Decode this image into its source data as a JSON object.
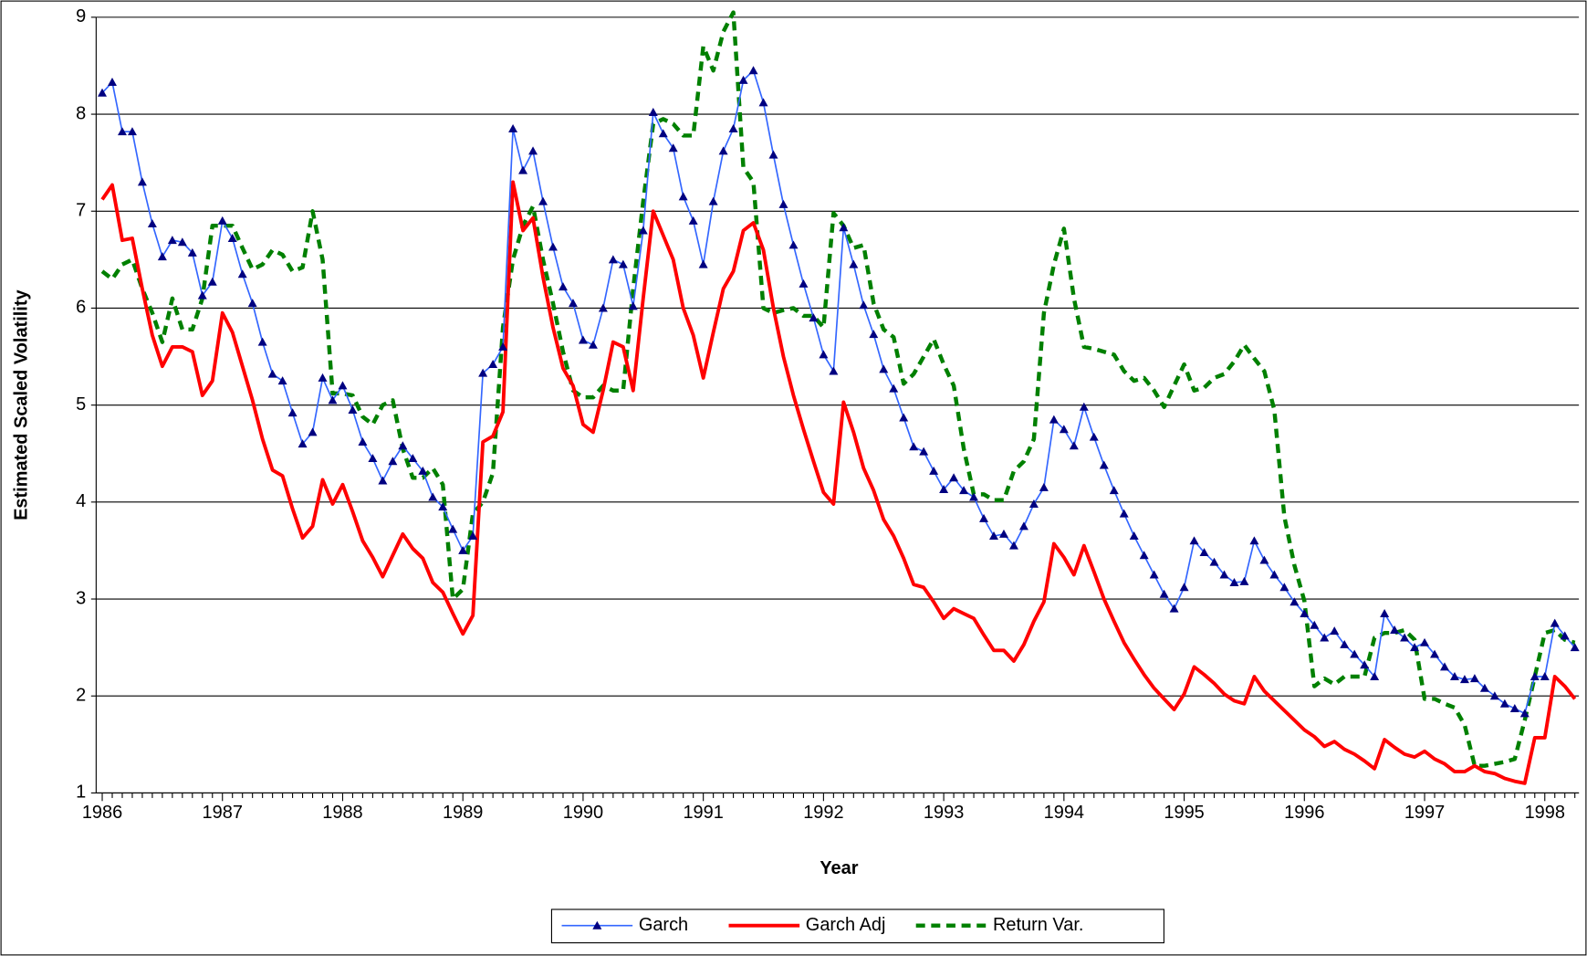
{
  "chart_data": {
    "type": "line",
    "x_label": "Year",
    "y_label": "Estimated Scaled Volatility",
    "categories": [
      "1986",
      null,
      null,
      null,
      null,
      null,
      null,
      null,
      null,
      null,
      null,
      null,
      "1987",
      null,
      null,
      null,
      null,
      null,
      null,
      null,
      null,
      null,
      null,
      null,
      "1988",
      null,
      null,
      null,
      null,
      null,
      null,
      null,
      null,
      null,
      null,
      null,
      "1989",
      null,
      null,
      null,
      null,
      null,
      null,
      null,
      null,
      null,
      null,
      null,
      "1990",
      null,
      null,
      null,
      null,
      null,
      null,
      null,
      null,
      null,
      null,
      null,
      "1991",
      null,
      null,
      null,
      null,
      null,
      null,
      null,
      null,
      null,
      null,
      null,
      "1992",
      null,
      null,
      null,
      null,
      null,
      null,
      null,
      null,
      null,
      null,
      null,
      "1993",
      null,
      null,
      null,
      null,
      null,
      null,
      null,
      null,
      null,
      null,
      null,
      "1994",
      null,
      null,
      null,
      null,
      null,
      null,
      null,
      null,
      null,
      null,
      null,
      "1995",
      null,
      null,
      null,
      null,
      null,
      null,
      null,
      null,
      null,
      null,
      null,
      "1996",
      null,
      null,
      null,
      null,
      null,
      null,
      null,
      null,
      null,
      null,
      null,
      "1997",
      null,
      null,
      null,
      null,
      null,
      null,
      null,
      null,
      null,
      null,
      null,
      "1998",
      null,
      null,
      null
    ],
    "ylim": [
      1,
      9
    ],
    "yticks": [
      1,
      2,
      3,
      4,
      5,
      6,
      7,
      8,
      9
    ],
    "grid": true,
    "legend": "bottom",
    "series": [
      {
        "name": "Garch",
        "color": "#3366ff",
        "marker": "triangle",
        "marker_color": "#000080",
        "dash": "solid",
        "width": 1.5,
        "values": [
          8.22,
          8.33,
          7.82,
          7.82,
          7.3,
          6.87,
          6.53,
          6.7,
          6.68,
          6.57,
          6.13,
          6.27,
          6.9,
          6.72,
          6.35,
          6.05,
          5.65,
          5.32,
          5.25,
          4.92,
          4.6,
          4.72,
          5.28,
          5.05,
          5.2,
          4.95,
          4.62,
          4.45,
          4.22,
          4.42,
          4.58,
          4.45,
          4.32,
          4.05,
          3.95,
          3.72,
          3.5,
          3.65,
          5.33,
          5.42,
          5.6,
          7.85,
          7.42,
          7.62,
          7.1,
          6.63,
          6.22,
          6.05,
          5.67,
          5.62,
          6.0,
          6.5,
          6.45,
          6.02,
          6.8,
          8.02,
          7.8,
          7.65,
          7.15,
          6.9,
          6.45,
          7.1,
          7.62,
          7.85,
          8.35,
          8.45,
          8.12,
          7.58,
          7.07,
          6.65,
          6.25,
          5.9,
          5.52,
          5.35,
          6.83,
          6.45,
          6.03,
          5.73,
          5.37,
          5.17,
          4.87,
          4.57,
          4.52,
          4.32,
          4.13,
          4.25,
          4.12,
          4.05,
          3.83,
          3.65,
          3.67,
          3.55,
          3.75,
          3.98,
          4.15,
          4.85,
          4.75,
          4.58,
          4.98,
          4.67,
          4.38,
          4.12,
          3.88,
          3.65,
          3.45,
          3.25,
          3.05,
          2.9,
          3.12,
          3.6,
          3.48,
          3.38,
          3.25,
          3.17,
          3.18,
          3.6,
          3.4,
          3.25,
          3.12,
          2.97,
          2.85,
          2.73,
          2.6,
          2.67,
          2.53,
          2.43,
          2.32,
          2.2,
          2.85,
          2.68,
          2.6,
          2.5,
          2.55,
          2.43,
          2.3,
          2.2,
          2.17,
          2.18,
          2.08,
          2.0,
          1.92,
          1.87,
          1.82,
          2.2,
          2.2,
          2.75,
          2.62,
          2.5
        ]
      },
      {
        "name": "Garch Adj",
        "color": "#ff0000",
        "dash": "solid",
        "width": 3.5,
        "values": [
          7.12,
          7.27,
          6.7,
          6.72,
          6.2,
          5.72,
          5.4,
          5.6,
          5.6,
          5.55,
          5.1,
          5.25,
          5.95,
          5.75,
          5.4,
          5.05,
          4.65,
          4.33,
          4.27,
          3.93,
          3.63,
          3.75,
          4.23,
          3.98,
          4.18,
          3.9,
          3.6,
          3.43,
          3.23,
          3.45,
          3.67,
          3.52,
          3.42,
          3.17,
          3.07,
          2.85,
          2.64,
          2.83,
          4.62,
          4.68,
          4.93,
          7.3,
          6.8,
          6.93,
          6.32,
          5.8,
          5.38,
          5.2,
          4.8,
          4.72,
          5.15,
          5.65,
          5.6,
          5.15,
          6.1,
          7.0,
          6.75,
          6.5,
          6.0,
          5.72,
          5.28,
          5.75,
          6.2,
          6.38,
          6.8,
          6.88,
          6.6,
          6.0,
          5.5,
          5.1,
          4.75,
          4.42,
          4.1,
          3.98,
          5.03,
          4.72,
          4.35,
          4.12,
          3.82,
          3.65,
          3.42,
          3.15,
          3.12,
          2.97,
          2.8,
          2.9,
          2.85,
          2.8,
          2.63,
          2.47,
          2.47,
          2.36,
          2.53,
          2.77,
          2.97,
          3.57,
          3.43,
          3.25,
          3.55,
          3.28,
          3.0,
          2.77,
          2.55,
          2.38,
          2.22,
          2.08,
          1.97,
          1.86,
          2.02,
          2.3,
          2.22,
          2.13,
          2.02,
          1.95,
          1.92,
          2.2,
          2.05,
          1.95,
          1.85,
          1.75,
          1.65,
          1.58,
          1.48,
          1.53,
          1.45,
          1.4,
          1.33,
          1.25,
          1.55,
          1.47,
          1.4,
          1.37,
          1.43,
          1.35,
          1.3,
          1.22,
          1.22,
          1.28,
          1.22,
          1.2,
          1.15,
          1.12,
          1.1,
          1.57,
          1.57,
          2.2,
          2.1,
          1.97
        ]
      },
      {
        "name": "Return Var.",
        "color": "#008000",
        "dash": "dashed",
        "width": 4,
        "values": [
          6.38,
          6.3,
          6.45,
          6.5,
          6.2,
          5.95,
          5.65,
          6.1,
          5.78,
          5.78,
          6.1,
          6.85,
          6.85,
          6.85,
          6.62,
          6.4,
          6.45,
          6.6,
          6.55,
          6.38,
          6.42,
          7.0,
          6.5,
          5.12,
          5.12,
          5.1,
          4.88,
          4.8,
          5.0,
          5.05,
          4.55,
          4.25,
          4.25,
          4.35,
          4.18,
          3.0,
          3.1,
          3.88,
          4.0,
          4.3,
          5.8,
          6.5,
          6.85,
          7.05,
          6.5,
          6.05,
          5.55,
          5.15,
          5.08,
          5.08,
          5.2,
          5.15,
          5.15,
          6.2,
          7.1,
          7.9,
          7.95,
          7.9,
          7.78,
          7.78,
          8.7,
          8.45,
          8.85,
          9.05,
          7.45,
          7.3,
          6.0,
          5.95,
          5.98,
          6.0,
          5.92,
          5.92,
          5.8,
          6.98,
          6.85,
          6.62,
          6.65,
          6.05,
          5.78,
          5.7,
          5.22,
          5.32,
          5.5,
          5.68,
          5.42,
          5.2,
          4.55,
          4.08,
          4.08,
          4.02,
          4.02,
          4.32,
          4.42,
          4.65,
          5.95,
          6.45,
          6.82,
          6.1,
          5.6,
          5.58,
          5.55,
          5.52,
          5.35,
          5.25,
          5.28,
          5.15,
          4.98,
          5.2,
          5.42,
          5.15,
          5.18,
          5.28,
          5.32,
          5.45,
          5.62,
          5.48,
          5.35,
          4.95,
          3.85,
          3.35,
          2.98,
          2.1,
          2.18,
          2.12,
          2.2,
          2.2,
          2.2,
          2.6,
          2.65,
          2.65,
          2.68,
          2.58,
          1.97,
          1.97,
          1.92,
          1.88,
          1.7,
          1.28,
          1.28,
          1.3,
          1.32,
          1.35,
          1.75,
          2.2,
          2.65,
          2.68,
          2.58,
          2.55
        ]
      }
    ]
  }
}
